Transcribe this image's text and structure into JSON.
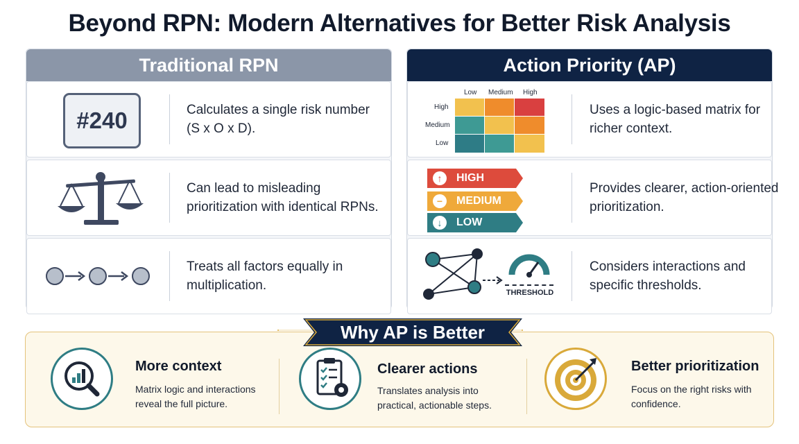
{
  "title": "Beyond RPN: Modern Alternatives for Better Risk Analysis",
  "traditional": {
    "heading": "Traditional RPN",
    "rows": [
      {
        "visual": "#240",
        "text": "Calculates a single risk number (S x O x D)."
      },
      {
        "icon": "balance-scale-icon",
        "text": "Can lead to misleading prioritization with identical RPNs."
      },
      {
        "icon": "chain-arrows-icon",
        "text": "Treats all factors equally in multiplication."
      }
    ]
  },
  "ap": {
    "heading": "Action Priority (AP)",
    "matrix": {
      "columns": [
        "Low",
        "Medium",
        "High"
      ],
      "rows": [
        "High",
        "Medium",
        "Low"
      ],
      "cells": [
        [
          "#f2c14e",
          "#ef8c2c",
          "#d94040"
        ],
        [
          "#3e9a94",
          "#f2c14e",
          "#ef8c2c"
        ],
        [
          "#2e7c86",
          "#3e9a94",
          "#f2c14e"
        ]
      ]
    },
    "priorities": [
      {
        "label": "HIGH",
        "symbol": "↑",
        "color": "#dd4b3c"
      },
      {
        "label": "MEDIUM",
        "symbol": "−",
        "color": "#efa93a"
      },
      {
        "label": "LOW",
        "symbol": "↓",
        "color": "#2f7d84"
      }
    ],
    "threshold_label": "THRESHOLD",
    "rows": [
      {
        "text": "Uses a logic-based matrix for richer context."
      },
      {
        "text": "Provides clearer, action-oriented prioritization."
      },
      {
        "text": "Considers interactions and specific thresholds."
      }
    ]
  },
  "why": {
    "heading": "Why AP is Better",
    "benefits": [
      {
        "icon": "magnifier-chart-icon",
        "title": "More context",
        "text": "Matrix logic and interactions reveal the full picture."
      },
      {
        "icon": "checklist-gear-icon",
        "title": "Clearer actions",
        "text": "Translates analysis into practical, actionable steps."
      },
      {
        "icon": "target-arrow-icon",
        "title": "Better prioritization",
        "text": "Focus on the right risks with confidence."
      }
    ]
  },
  "colors": {
    "navy": "#0f2344",
    "slate": "#8b96a8",
    "gold": "#d9a93a",
    "teal": "#2f7d84"
  }
}
